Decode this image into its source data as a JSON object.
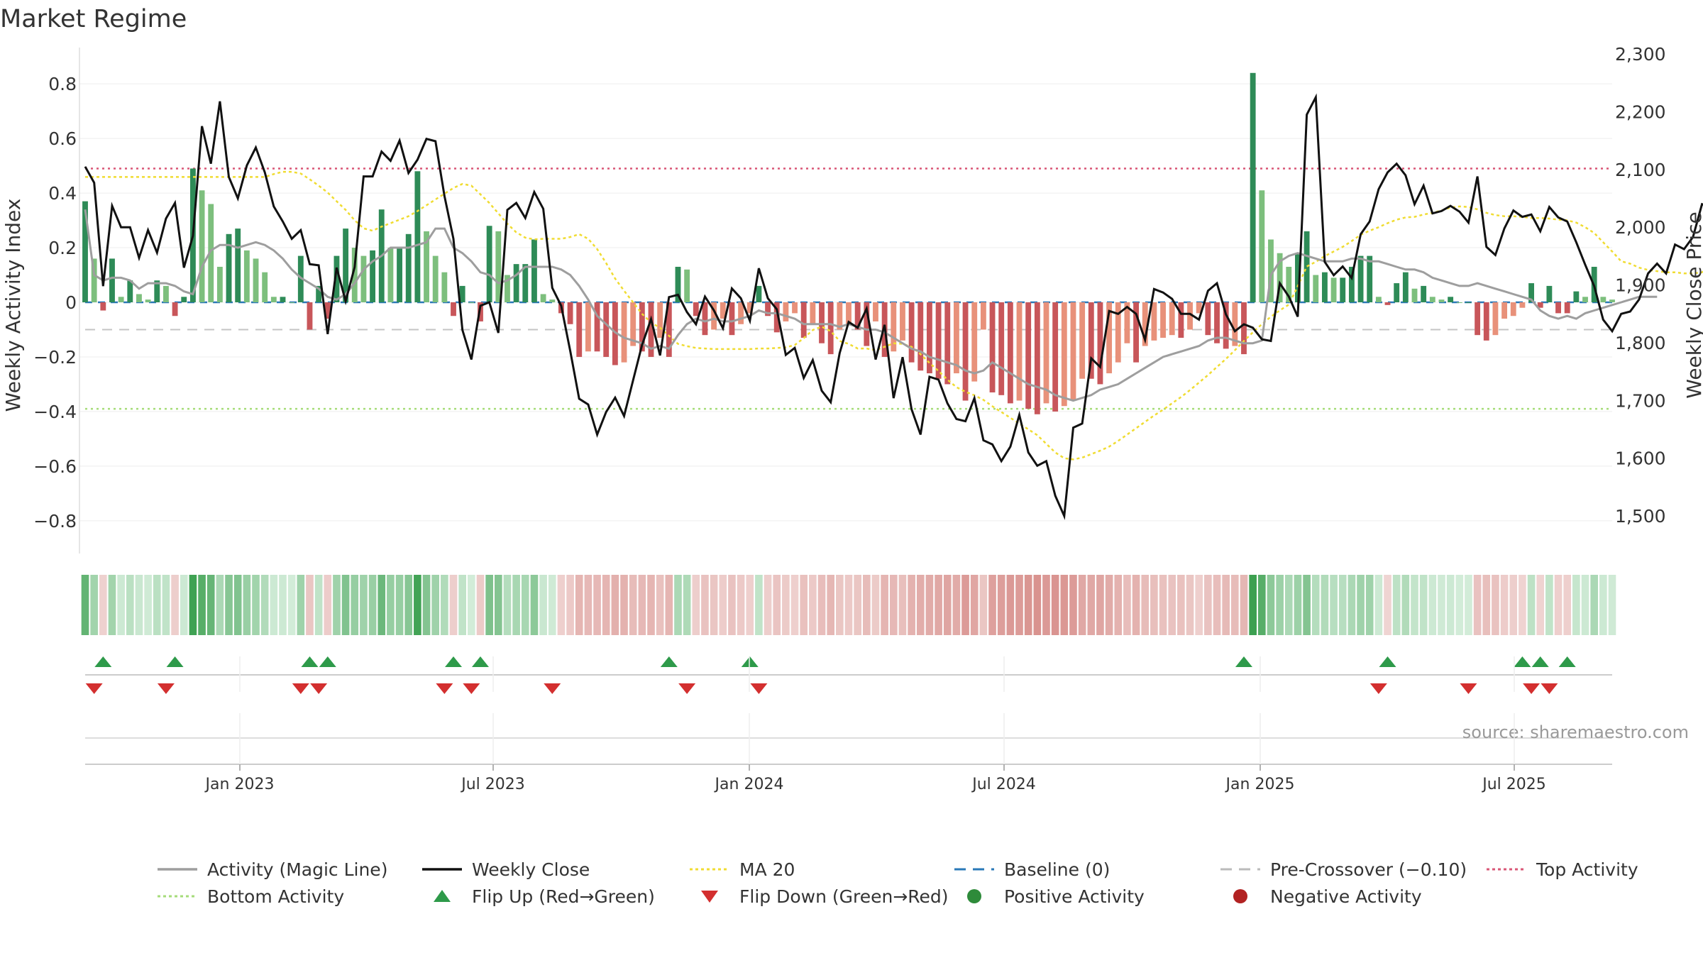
{
  "chart_data": {
    "type": "bar",
    "title": "Market Regime",
    "source": "source: sharemaestro.com",
    "x_ticks": [
      "Jan 2023",
      "Jul 2023",
      "Jan 2024",
      "Jul 2024",
      "Jan 2025",
      "Jul 2025"
    ],
    "left_axis": {
      "label": "Weekly Activity Index",
      "ticks": [
        "−0.8",
        "−0.6",
        "−0.4",
        "−0.2",
        "0",
        "0.2",
        "0.4",
        "0.6",
        "0.8"
      ],
      "range": [
        -0.92,
        0.92
      ]
    },
    "right_axis": {
      "label": "Weekly Close Price",
      "ticks": [
        "1,500",
        "1,600",
        "1,700",
        "1,800",
        "1,900",
        "2,000",
        "2,100",
        "2,200",
        "2,300"
      ],
      "range": [
        1435,
        2305
      ]
    },
    "reference_lines": {
      "baseline": 0,
      "pre_crossover": -0.1,
      "top_activity": 0.49,
      "bottom_activity": -0.39
    },
    "activity_index": [
      0.37,
      0.16,
      -0.03,
      0.16,
      0.02,
      0.08,
      0.03,
      0.01,
      0.08,
      0.06,
      -0.05,
      0.02,
      0.49,
      0.41,
      0.36,
      0.13,
      0.25,
      0.27,
      0.19,
      0.16,
      0.11,
      0.02,
      0.02,
      0.0,
      0.17,
      -0.1,
      0.06,
      -0.06,
      0.17,
      0.27,
      0.2,
      0.17,
      0.19,
      0.34,
      0.2,
      0.2,
      0.25,
      0.48,
      0.26,
      0.17,
      0.11,
      -0.05,
      0.06,
      0.0,
      -0.07,
      0.28,
      0.26,
      0.1,
      0.14,
      0.14,
      0.23,
      0.03,
      0.01,
      -0.04,
      -0.08,
      -0.2,
      -0.18,
      -0.18,
      -0.2,
      -0.23,
      -0.22,
      -0.16,
      -0.18,
      -0.2,
      -0.13,
      -0.2,
      0.13,
      0.12,
      -0.05,
      -0.12,
      -0.1,
      -0.06,
      -0.12,
      -0.08,
      -0.04,
      0.06,
      -0.05,
      -0.11,
      -0.07,
      -0.04,
      -0.13,
      -0.08,
      -0.15,
      -0.19,
      -0.1,
      -0.08,
      -0.1,
      -0.16,
      -0.07,
      -0.2,
      -0.18,
      -0.14,
      -0.22,
      -0.25,
      -0.26,
      -0.28,
      -0.3,
      -0.26,
      -0.36,
      -0.29,
      -0.1,
      -0.33,
      -0.34,
      -0.37,
      -0.36,
      -0.39,
      -0.41,
      -0.37,
      -0.4,
      -0.38,
      -0.36,
      -0.28,
      -0.28,
      -0.3,
      -0.26,
      -0.22,
      -0.15,
      -0.22,
      -0.16,
      -0.14,
      -0.13,
      -0.12,
      -0.13,
      -0.1,
      -0.04,
      -0.12,
      -0.15,
      -0.17,
      -0.16,
      -0.19,
      0.84,
      0.41,
      0.23,
      0.18,
      0.13,
      0.18,
      0.26,
      0.1,
      0.11,
      0.09,
      0.09,
      0.13,
      0.17,
      0.17,
      0.02,
      -0.01,
      0.07,
      0.11,
      0.05,
      0.06,
      0.02,
      0.01,
      0.02,
      0.0,
      0.0,
      -0.12,
      -0.14,
      -0.12,
      -0.06,
      -0.05,
      -0.02,
      0.07,
      -0.02,
      0.06,
      -0.04,
      -0.04,
      0.04,
      0.02,
      0.13,
      0.02,
      0.01
    ],
    "weekly_close": [
      2105,
      2077,
      1898,
      2037,
      2000,
      2000,
      1947,
      1995,
      1956,
      2015,
      2042,
      1930,
      1985,
      2175,
      2110,
      2218,
      2087,
      2050,
      2107,
      2138,
      2095,
      2036,
      2010,
      1980,
      1995,
      1936,
      1934,
      1815,
      1930,
      1872,
      1931,
      2088,
      2088,
      2131,
      2115,
      2150,
      2094,
      2117,
      2153,
      2149,
      2054,
      1980,
      1822,
      1771,
      1864,
      1870,
      1817,
      2030,
      2042,
      2016,
      2061,
      2032,
      1895,
      1864,
      1786,
      1703,
      1693,
      1641,
      1680,
      1705,
      1673,
      1735,
      1796,
      1841,
      1778,
      1879,
      1883,
      1853,
      1832,
      1880,
      1856,
      1825,
      1894,
      1877,
      1838,
      1929,
      1877,
      1858,
      1779,
      1791,
      1739,
      1770,
      1717,
      1697,
      1782,
      1836,
      1826,
      1859,
      1771,
      1831,
      1704,
      1775,
      1685,
      1641,
      1741,
      1736,
      1695,
      1668,
      1664,
      1704,
      1631,
      1624,
      1595,
      1620,
      1675,
      1610,
      1587,
      1595,
      1535,
      1500,
      1653,
      1660,
      1773,
      1758,
      1855,
      1850,
      1862,
      1850,
      1805,
      1893,
      1887,
      1876,
      1850,
      1850,
      1840,
      1890,
      1903,
      1849,
      1820,
      1832,
      1826,
      1806,
      1803,
      1903,
      1880,
      1845,
      2195,
      2225,
      1940,
      1917,
      1932,
      1912,
      1988,
      2010,
      2066,
      2095,
      2110,
      2090,
      2040,
      2072,
      2024,
      2028,
      2037,
      2027,
      2008,
      2088,
      1966,
      1952,
      1998,
      2029,
      2018,
      2022,
      1993,
      2035,
      2017,
      2010,
      1974,
      1935,
      1898,
      1840,
      1820,
      1850,
      1854,
      1875,
      1920,
      1937,
      1920,
      1970,
      1962,
      1983,
      2040,
      2035,
      2018,
      2018
    ],
    "activity_magic_line": [
      0.34,
      0.1,
      0.08,
      0.09,
      0.09,
      0.08,
      0.05,
      0.07,
      0.07,
      0.07,
      0.06,
      0.04,
      0.03,
      0.13,
      0.19,
      0.21,
      0.21,
      0.2,
      0.21,
      0.22,
      0.21,
      0.19,
      0.16,
      0.12,
      0.09,
      0.07,
      0.05,
      0.02,
      0.01,
      0.03,
      0.07,
      0.12,
      0.15,
      0.17,
      0.2,
      0.2,
      0.2,
      0.21,
      0.22,
      0.27,
      0.27,
      0.2,
      0.18,
      0.15,
      0.11,
      0.1,
      0.07,
      0.08,
      0.1,
      0.13,
      0.13,
      0.13,
      0.13,
      0.12,
      0.1,
      0.06,
      0.01,
      -0.05,
      -0.08,
      -0.11,
      -0.13,
      -0.14,
      -0.15,
      -0.17,
      -0.16,
      -0.17,
      -0.12,
      -0.08,
      -0.06,
      -0.07,
      -0.06,
      -0.07,
      -0.07,
      -0.06,
      -0.05,
      -0.03,
      -0.04,
      -0.04,
      -0.05,
      -0.06,
      -0.08,
      -0.08,
      -0.08,
      -0.08,
      -0.09,
      -0.08,
      -0.09,
      -0.1,
      -0.1,
      -0.11,
      -0.13,
      -0.15,
      -0.17,
      -0.18,
      -0.2,
      -0.21,
      -0.22,
      -0.23,
      -0.25,
      -0.26,
      -0.25,
      -0.22,
      -0.24,
      -0.26,
      -0.28,
      -0.3,
      -0.31,
      -0.32,
      -0.34,
      -0.35,
      -0.36,
      -0.35,
      -0.34,
      -0.32,
      -0.31,
      -0.3,
      -0.28,
      -0.26,
      -0.24,
      -0.22,
      -0.2,
      -0.19,
      -0.18,
      -0.17,
      -0.16,
      -0.14,
      -0.13,
      -0.13,
      -0.14,
      -0.15,
      -0.15,
      -0.14,
      0.1,
      0.15,
      0.17,
      0.18,
      0.17,
      0.16,
      0.15,
      0.15,
      0.15,
      0.16,
      0.16,
      0.15,
      0.15,
      0.14,
      0.13,
      0.12,
      0.12,
      0.11,
      0.09,
      0.08,
      0.07,
      0.06,
      0.06,
      0.07,
      0.06,
      0.05,
      0.04,
      0.03,
      0.02,
      0.01,
      -0.03,
      -0.05,
      -0.06,
      -0.05,
      -0.06,
      -0.04,
      -0.03,
      -0.02,
      -0.01,
      0.0,
      0.01,
      0.02,
      0.02,
      0.02
    ],
    "ma20_price": [
      2087,
      2087,
      2087,
      2087,
      2087,
      2087,
      2087,
      2087,
      2087,
      2087,
      2087,
      2087,
      2087,
      2087,
      2087,
      2087,
      2087,
      2087,
      2087,
      2087,
      2087,
      2092,
      2096,
      2096,
      2093,
      2083,
      2072,
      2060,
      2045,
      2030,
      2012,
      1998,
      1994,
      2001,
      2007,
      2013,
      2019,
      2028,
      2038,
      2048,
      2058,
      2068,
      2075,
      2072,
      2057,
      2042,
      2024,
      2006,
      1991,
      1982,
      1979,
      1980,
      1980,
      1980,
      1983,
      1988,
      1980,
      1962,
      1938,
      1911,
      1890,
      1870,
      1850,
      1835,
      1826,
      1812,
      1798,
      1794,
      1791,
      1790,
      1789,
      1789,
      1789,
      1789,
      1789,
      1790,
      1790,
      1791,
      1792,
      1796,
      1808,
      1822,
      1828,
      1820,
      1803,
      1798,
      1790,
      1790,
      1787,
      1793,
      1799,
      1798,
      1793,
      1780,
      1765,
      1751,
      1736,
      1723,
      1715,
      1709,
      1701,
      1690,
      1680,
      1670,
      1660,
      1650,
      1640,
      1625,
      1610,
      1600,
      1598,
      1601,
      1607,
      1613,
      1620,
      1630,
      1641,
      1652,
      1663,
      1674,
      1684,
      1695,
      1706,
      1718,
      1731,
      1744,
      1758,
      1772,
      1787,
      1803,
      1818,
      1832,
      1845,
      1856,
      1866,
      1898,
      1932,
      1940,
      1950,
      1958,
      1966,
      1976,
      1987,
      1994,
      2000,
      2007,
      2013,
      2017,
      2018,
      2022,
      2025,
      2029,
      2034,
      2036,
      2035,
      2031,
      2025,
      2021,
      2019,
      2019,
      2018,
      2016,
      2016,
      2015,
      2013,
      2012,
      2008,
      2000,
      1990,
      1974,
      1958,
      1941,
      1937,
      1930,
      1926,
      1924,
      1922,
      1922,
      1920,
      1920,
      1922,
      1932,
      1944,
      1948,
      1953,
      1955
    ]
  },
  "legend": [
    {
      "label": "Activity (Magic Line)",
      "color": "#9e9e9e",
      "symbol": "line"
    },
    {
      "label": "Weekly Close",
      "color": "#111111",
      "symbol": "line"
    },
    {
      "label": "MA 20",
      "color": "#f0dc32",
      "symbol": "dotted"
    },
    {
      "label": "Baseline (0)",
      "color": "#2a78b8",
      "symbol": "dashed"
    },
    {
      "label": "Pre-Crossover (−0.10)",
      "color": "#bbbbbb",
      "symbol": "dashed"
    },
    {
      "label": "Top Activity",
      "color": "#d95777",
      "symbol": "dotted"
    },
    {
      "label": "Bottom Activity",
      "color": "#a6dc7a",
      "symbol": "dotted"
    },
    {
      "label": "Flip Up (Red→Green)",
      "color": "#2e9a4a",
      "symbol": "tri-up"
    },
    {
      "label": "Flip Down (Green→Red)",
      "color": "#d32f2f",
      "symbol": "tri-down"
    },
    {
      "label": "Positive Activity",
      "color": "#2e8b3a",
      "symbol": "dot"
    },
    {
      "label": "Negative Activity",
      "color": "#b22222",
      "symbol": "dot"
    }
  ]
}
